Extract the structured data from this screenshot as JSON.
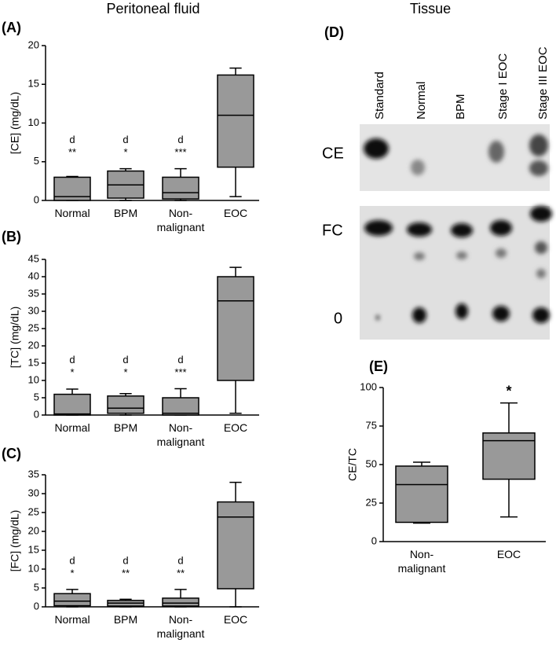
{
  "headers": [
    "Peritoneal fluid",
    "Tissue"
  ],
  "blot": {
    "label": "(D)",
    "lanes": [
      "Standard",
      "Normal",
      "BPM",
      "Stage I EOC",
      "Stage III EOC"
    ],
    "bands": [
      "CE",
      "FC",
      "0"
    ]
  },
  "chart_data": [
    {
      "type": "box",
      "label": "(A)",
      "ylabel": "[CE] (mg/dL)",
      "color": "#999999",
      "categories": [
        "Normal",
        "BPM",
        "Non-\nmalignant",
        "EOC"
      ],
      "min": [
        0,
        0,
        0,
        0.5
      ],
      "q1": [
        0,
        0.3,
        0.2,
        4.3
      ],
      "median": [
        0.5,
        2,
        1,
        11
      ],
      "q3": [
        3,
        3.8,
        3,
        16.2
      ],
      "max": [
        3.1,
        4.1,
        4.1,
        17.1
      ],
      "letters": [
        "d",
        "d",
        "d",
        null
      ],
      "stars": [
        "**",
        "*",
        "***",
        null
      ],
      "ylim": [
        0,
        20
      ],
      "yticks": [
        0,
        5,
        10,
        15,
        20
      ]
    },
    {
      "type": "box",
      "label": "(B)",
      "ylabel": "[TC] (mg/dL)",
      "color": "#999999",
      "categories": [
        "Normal",
        "BPM",
        "Non-\nmalignant",
        "EOC"
      ],
      "min": [
        0,
        0,
        0,
        0.5
      ],
      "q1": [
        0,
        0.5,
        0,
        10
      ],
      "median": [
        0.3,
        2,
        0.5,
        33
      ],
      "q3": [
        6,
        5.5,
        5,
        40
      ],
      "max": [
        7.5,
        6.2,
        7.6,
        42.7
      ],
      "letters": [
        "d",
        "d",
        "d",
        null
      ],
      "stars": [
        "*",
        "*",
        "***",
        null
      ],
      "ylim": [
        0,
        45
      ],
      "yticks": [
        0,
        5,
        10,
        15,
        20,
        25,
        30,
        35,
        40,
        45
      ]
    },
    {
      "type": "box",
      "label": "(C)",
      "ylabel": "[FC] (mg/dL)",
      "color": "#999999",
      "categories": [
        "Normal",
        "BPM",
        "Non-\nmalignant",
        "EOC"
      ],
      "min": [
        0,
        0,
        0,
        0
      ],
      "q1": [
        0.3,
        0.2,
        0.2,
        4.8
      ],
      "median": [
        1.5,
        1,
        1,
        23.8
      ],
      "q3": [
        3.5,
        1.7,
        2.3,
        27.8
      ],
      "max": [
        4.6,
        2,
        4.6,
        33
      ],
      "letters": [
        "d",
        "d",
        "d",
        null
      ],
      "stars": [
        "*",
        "**",
        "**",
        null
      ],
      "ylim": [
        0,
        35
      ],
      "yticks": [
        0,
        5,
        10,
        15,
        20,
        25,
        30,
        35
      ]
    },
    {
      "type": "box",
      "label": "(E)",
      "ylabel": "CE/TC",
      "color": "#999999",
      "categories": [
        "Non-\nmalignant",
        "EOC"
      ],
      "min": [
        12,
        16
      ],
      "q1": [
        12.5,
        40.5
      ],
      "median": [
        37,
        65.5
      ],
      "q3": [
        49,
        70.5
      ],
      "max": [
        51.5,
        90
      ],
      "letters": [
        null,
        null
      ],
      "stars": [
        null,
        "*"
      ],
      "ylim": [
        0,
        100
      ],
      "yticks": [
        0,
        25,
        50,
        75,
        100
      ]
    }
  ]
}
